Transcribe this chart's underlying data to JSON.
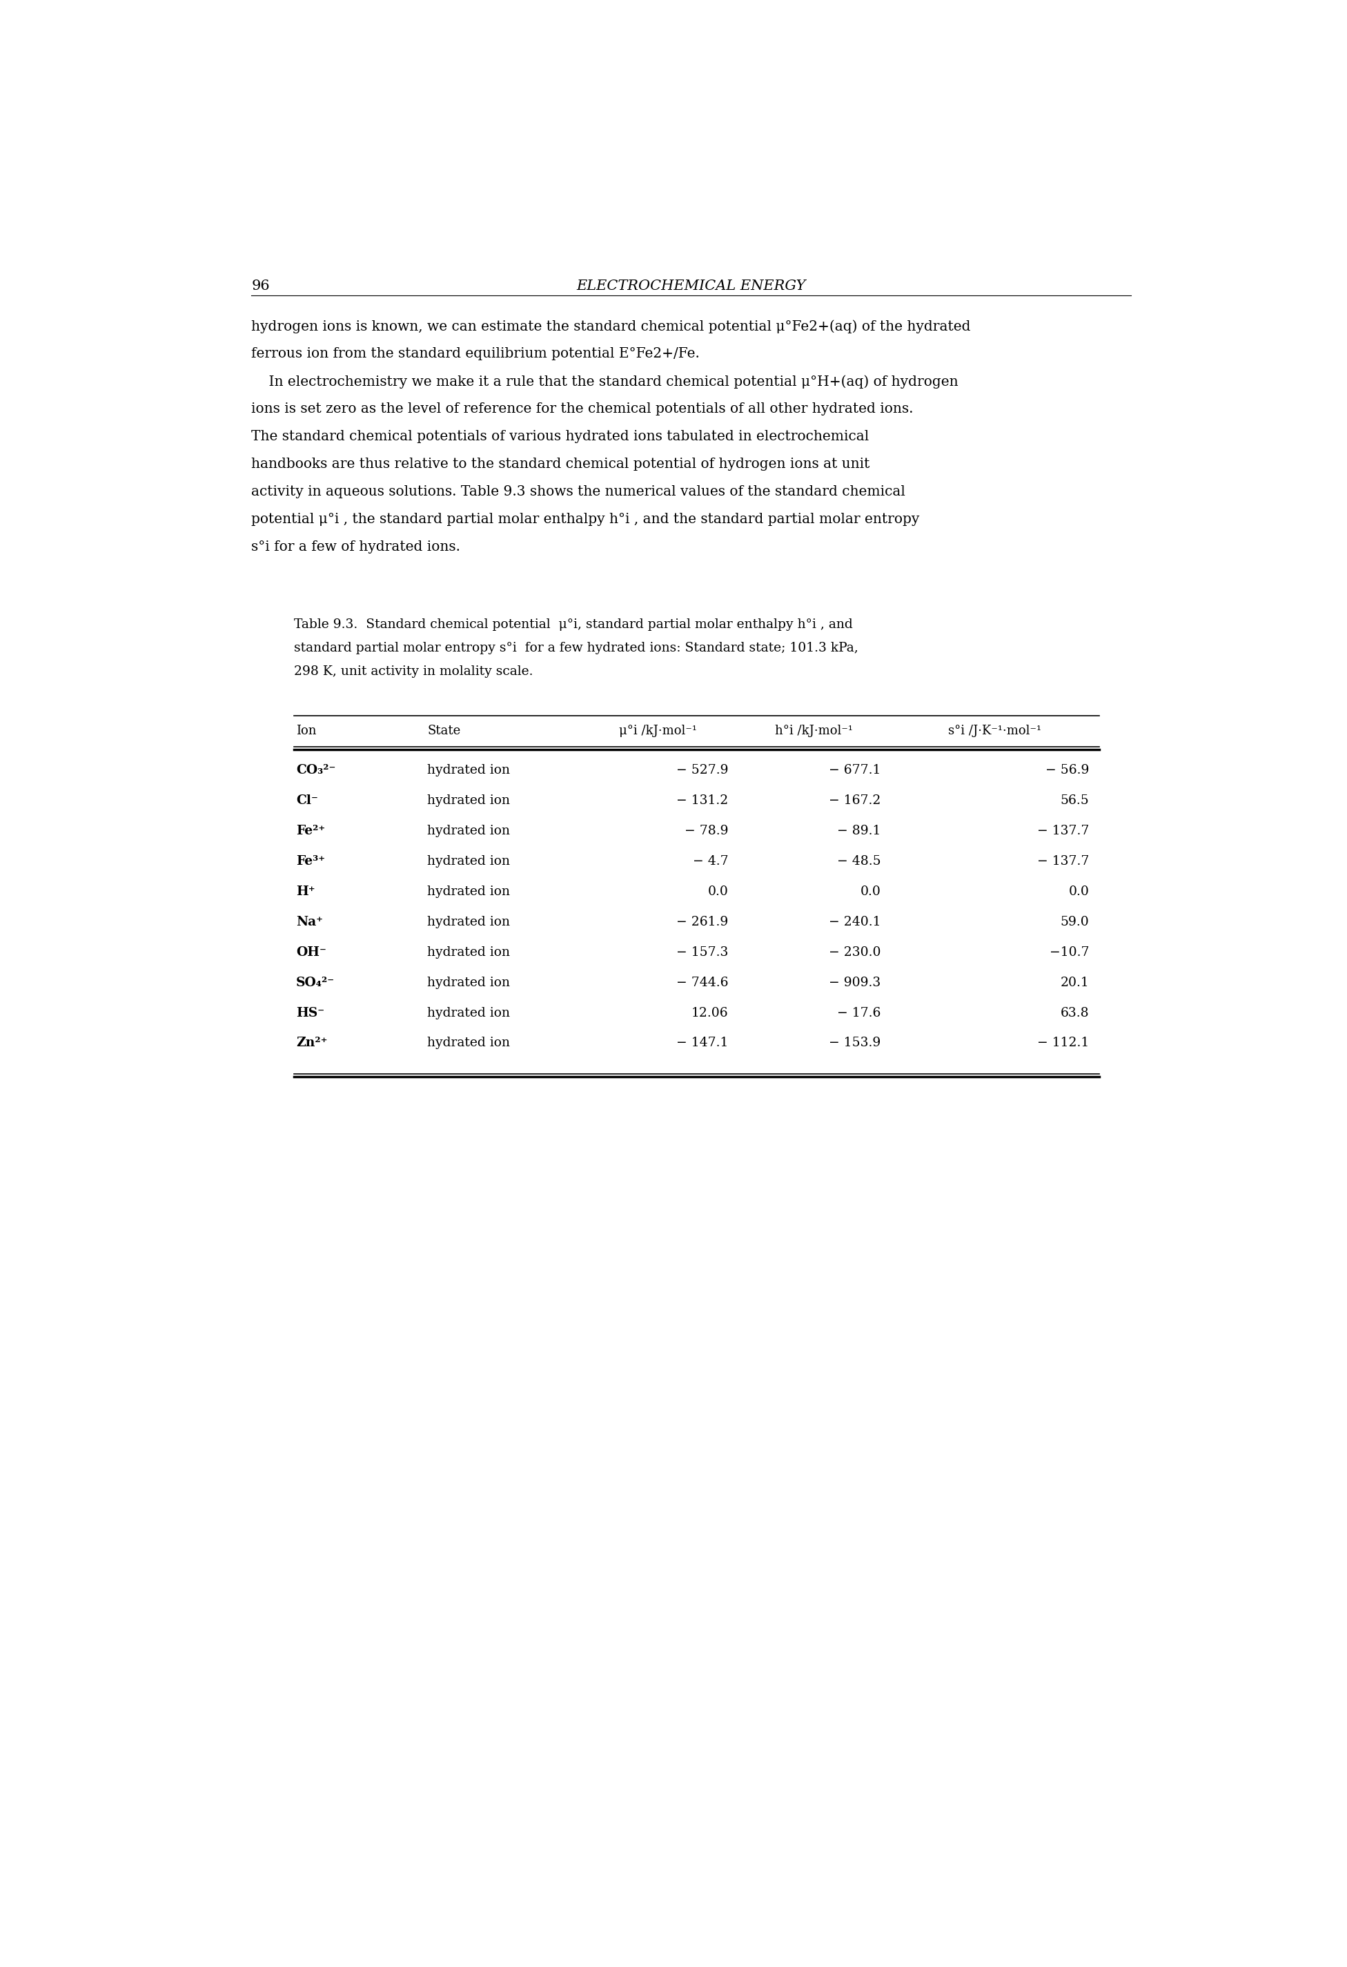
{
  "page_number": "96",
  "page_header": "ELECTROCHEMICAL ENERGY",
  "paragraph_lines": [
    "hydrogen ions is known, we can estimate the standard chemical potential μ°Fe2+(aq) of the hydrated",
    "ferrous ion from the standard equilibrium potential E°Fe2+/Fe.",
    "    In electrochemistry we make it a rule that the standard chemical potential μ°H+(aq) of hydrogen",
    "ions is set zero as the level of reference for the chemical potentials of all other hydrated ions.",
    "The standard chemical potentials of various hydrated ions tabulated in electrochemical",
    "handbooks are thus relative to the standard chemical potential of hydrogen ions at unit",
    "activity in aqueous solutions. Table 9.3 shows the numerical values of the standard chemical",
    "potential μ°i , the standard partial molar enthalpy h°i , and the standard partial molar entropy",
    "s°i for a few of hydrated ions."
  ],
  "caption_lines": [
    "Table 9.3.  Standard chemical potential  μ°i, standard partial molar enthalpy h°i , and",
    "standard partial molar entropy s°i  for a few hydrated ions: Standard state; 101.3 kPa,",
    "298 K, unit activity in molality scale."
  ],
  "col_headers": [
    "Ion",
    "State",
    "μ°i /kJ·mol⁻¹",
    "h°i /kJ·mol⁻¹",
    "s°i /J·K⁻¹·mol⁻¹"
  ],
  "rows": [
    [
      "CO₃²⁻",
      "hydrated ion",
      "− 527.9",
      "− 677.1",
      "− 56.9"
    ],
    [
      "Cl⁻",
      "hydrated ion",
      "− 131.2",
      "− 167.2",
      "56.5"
    ],
    [
      "Fe²⁺",
      "hydrated ion",
      "− 78.9",
      "− 89.1",
      "− 137.7"
    ],
    [
      "Fe³⁺",
      "hydrated ion",
      "− 4.7",
      "− 48.5",
      "− 137.7"
    ],
    [
      "H⁺",
      "hydrated ion",
      "0.0",
      "0.0",
      "0.0"
    ],
    [
      "Na⁺",
      "hydrated ion",
      "− 261.9",
      "− 240.1",
      "59.0"
    ],
    [
      "OH⁻",
      "hydrated ion",
      "− 157.3",
      "− 230.0",
      "−10.7"
    ],
    [
      "SO₄²⁻",
      "hydrated ion",
      "− 744.6",
      "− 909.3",
      "20.1"
    ],
    [
      "HS⁻",
      "hydrated ion",
      "12.06",
      "− 17.6",
      "63.8"
    ],
    [
      "Zn²⁺",
      "hydrated ion",
      "− 147.1",
      "− 153.9",
      "− 112.1"
    ]
  ],
  "background_color": "#ffffff",
  "text_color": "#000000"
}
